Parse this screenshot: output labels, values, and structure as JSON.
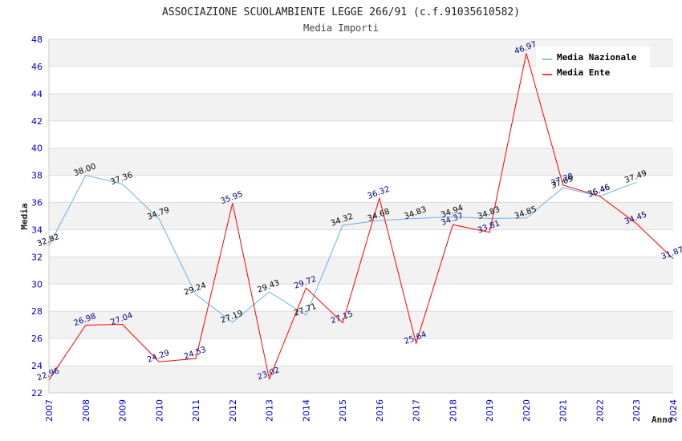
{
  "chart_data": {
    "type": "line",
    "title": "ASSOCIAZIONE SCUOLAMBIENTE LEGGE 266/91 (c.f.91035610582)",
    "subtitle": "Media Importi",
    "xlabel": "Anno",
    "ylabel": "Media",
    "ylim": [
      22,
      48
    ],
    "yticks": [
      "22",
      "24",
      "26",
      "28",
      "30",
      "32",
      "34",
      "36",
      "38",
      "40",
      "42",
      "44",
      "46",
      "48"
    ],
    "categories": [
      "2007",
      "2008",
      "2009",
      "2010",
      "2011",
      "2012",
      "2013",
      "2014",
      "2015",
      "2016",
      "2017",
      "2018",
      "2019",
      "2020",
      "2021",
      "2022",
      "2023",
      "2024"
    ],
    "grid": "horizontal bands",
    "legend_position": "top-right",
    "series": [
      {
        "name": "Media Nazionale",
        "color": "#6fb0e8",
        "label_color": "#000000",
        "values": [
          32.82,
          38.0,
          37.36,
          34.79,
          29.24,
          27.19,
          29.43,
          27.71,
          34.32,
          34.68,
          34.83,
          34.94,
          34.83,
          34.85,
          37.09,
          36.46,
          37.49,
          null
        ],
        "labels": [
          "32.82",
          "38.00",
          "37.36",
          "34.79",
          "29.24",
          "27.19",
          "29.43",
          "27.71",
          "34.32",
          "34.68",
          "34.83",
          "34.94",
          "34.83",
          "34.85",
          "37.09",
          "36.46",
          "37.49",
          ""
        ]
      },
      {
        "name": "Media Ente",
        "color": "#ff0000",
        "label_color": "#000080",
        "values": [
          22.96,
          26.98,
          27.04,
          24.29,
          24.53,
          35.95,
          23.02,
          29.72,
          27.15,
          36.32,
          25.64,
          34.37,
          33.81,
          46.97,
          37.28,
          36.46,
          34.45,
          31.87
        ],
        "labels": [
          "22.96",
          "26.98",
          "27.04",
          "24.29",
          "24.53",
          "35.95",
          "23.02",
          "29.72",
          "27.15",
          "36.32",
          "25.64",
          "34.37",
          "33.81",
          "46.97",
          "37.28",
          "36.46",
          "34.45",
          "31.87"
        ]
      }
    ]
  }
}
